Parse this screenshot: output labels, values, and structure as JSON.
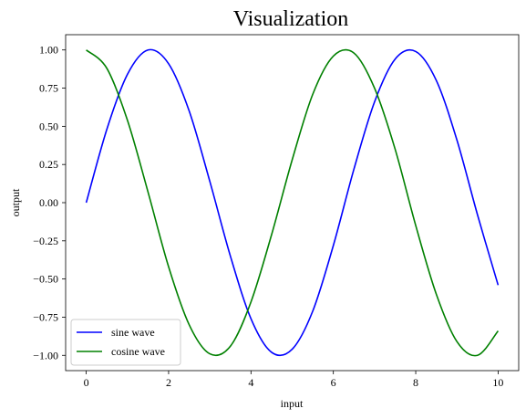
{
  "chart_data": {
    "type": "line",
    "title": "Visualization",
    "xlabel": "input",
    "ylabel": "output",
    "xlim": [
      -0.5,
      10.5
    ],
    "ylim": [
      -1.1,
      1.1
    ],
    "xticks": [
      0,
      2,
      4,
      6,
      8,
      10
    ],
    "xtick_labels": [
      "0",
      "2",
      "4",
      "6",
      "8",
      "10"
    ],
    "yticks": [
      1.0,
      0.75,
      0.5,
      0.25,
      0.0,
      -0.25,
      -0.5,
      -0.75,
      -1.0
    ],
    "ytick_labels": [
      "1.00",
      "0.75",
      "0.50",
      "0.25",
      "0.00",
      "−0.25",
      "−0.50",
      "−0.75",
      "−1.00"
    ],
    "grid": false,
    "legend_position": "lower-left",
    "series": [
      {
        "name": "sine wave",
        "color": "#0000ff",
        "x": [
          0,
          0.5,
          1,
          1.5,
          2,
          2.5,
          3,
          3.5,
          4,
          4.5,
          5,
          5.5,
          6,
          6.5,
          7,
          7.5,
          8,
          8.5,
          9,
          9.5,
          10
        ],
        "y": [
          0.0,
          0.48,
          0.84,
          1.0,
          0.91,
          0.6,
          0.14,
          -0.35,
          -0.76,
          -0.98,
          -0.96,
          -0.71,
          -0.28,
          0.22,
          0.66,
          0.94,
          0.99,
          0.8,
          0.41,
          -0.08,
          -0.54
        ]
      },
      {
        "name": "cosine wave",
        "color": "#008000",
        "x": [
          0,
          0.5,
          1,
          1.5,
          2,
          2.5,
          3,
          3.5,
          4,
          4.5,
          5,
          5.5,
          6,
          6.5,
          7,
          7.5,
          8,
          8.5,
          9,
          9.5,
          10
        ],
        "y": [
          1.0,
          0.88,
          0.54,
          0.07,
          -0.42,
          -0.8,
          -0.99,
          -0.94,
          -0.65,
          -0.21,
          0.28,
          0.71,
          0.96,
          0.98,
          0.75,
          0.35,
          -0.15,
          -0.6,
          -0.91,
          -1.0,
          -0.84
        ]
      }
    ]
  }
}
